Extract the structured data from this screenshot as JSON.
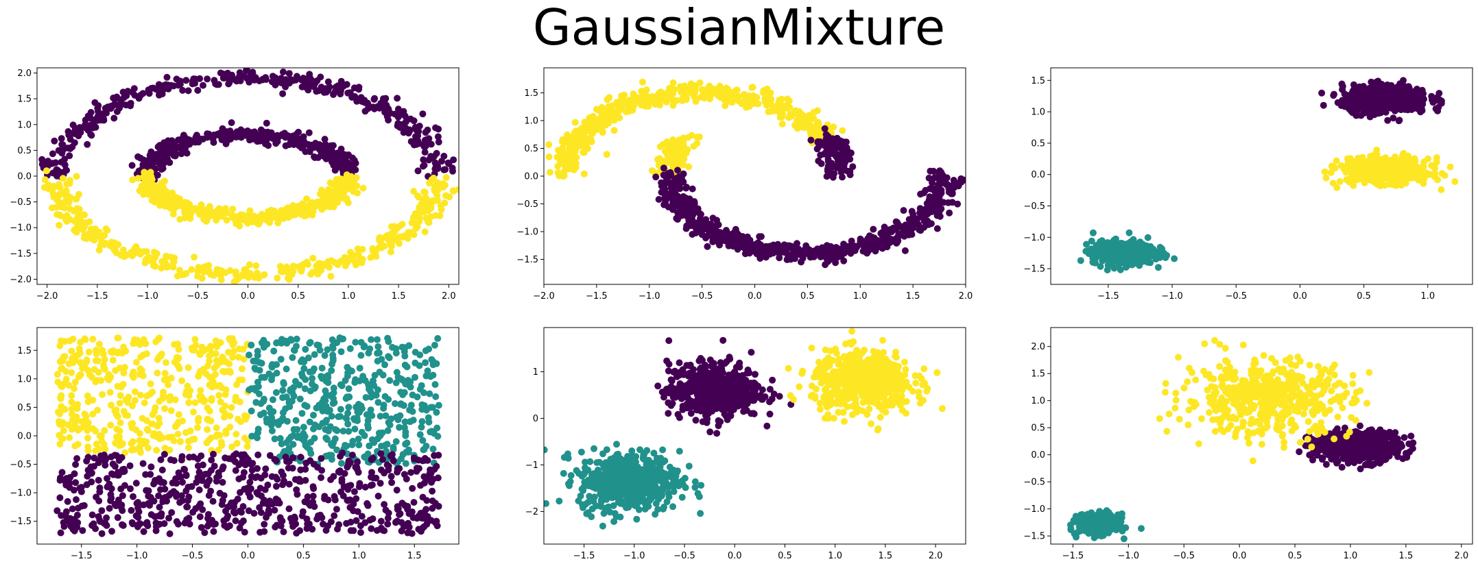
{
  "figure_title": "GaussianMixture",
  "colors": {
    "purple": "#440154",
    "teal": "#21918c",
    "yellow": "#fde725"
  },
  "chart_data": [
    {
      "type": "scatter",
      "title": "",
      "dataset_shape": "concentric circles",
      "xlim": [
        -2.1,
        2.1
      ],
      "ylim": [
        -2.1,
        2.1
      ],
      "xticks": [
        "-2.0",
        "-1.5",
        "-1.0",
        "-0.5",
        "0.0",
        "0.5",
        "1.0",
        "1.5",
        "2.0"
      ],
      "yticks": [
        "-2.0",
        "-1.5",
        "-1.0",
        "-0.5",
        "0.0",
        "0.5",
        "1.0",
        "1.5",
        "2.0"
      ],
      "grid": false,
      "series": [
        {
          "color": "purple",
          "shape": "circle-upper",
          "cx": 0,
          "cy": 0,
          "rx": 1.9,
          "ry": 1.9,
          "from_deg": 0,
          "to_deg": 180,
          "noise": 0.08,
          "count": 380
        },
        {
          "color": "yellow",
          "shape": "circle-lower",
          "cx": 0,
          "cy": 0,
          "rx": 1.9,
          "ry": 1.9,
          "from_deg": 180,
          "to_deg": 360,
          "noise": 0.08,
          "count": 380
        },
        {
          "color": "purple",
          "shape": "ellipse-upper",
          "cx": 0,
          "cy": 0,
          "rx": 1.0,
          "ry": 0.8,
          "from_deg": 0,
          "to_deg": 180,
          "noise": 0.07,
          "count": 380
        },
        {
          "color": "yellow",
          "shape": "ellipse-lower",
          "cx": 0,
          "cy": 0,
          "rx": 1.0,
          "ry": 0.8,
          "from_deg": 180,
          "to_deg": 360,
          "noise": 0.07,
          "count": 380
        }
      ]
    },
    {
      "type": "scatter",
      "title": "",
      "dataset_shape": "two moons",
      "xlim": [
        -2.0,
        2.0
      ],
      "ylim": [
        -1.95,
        1.95
      ],
      "xticks": [
        "-2.0",
        "-1.5",
        "-1.0",
        "-0.5",
        "0.0",
        "0.5",
        "1.0",
        "1.5",
        "2.0"
      ],
      "yticks": [
        "-1.5",
        "-1.0",
        "-0.5",
        "0.0",
        "0.5",
        "1.0",
        "1.5"
      ],
      "grid": false,
      "series": [
        {
          "color": "yellow",
          "shape": "upper-moon",
          "cx": -0.5,
          "cy": 0.05,
          "rx": 1.3,
          "ry": 1.45,
          "from_deg": 25,
          "to_deg": 180,
          "noise": 0.08,
          "count": 520
        },
        {
          "color": "purple",
          "shape": "upper-moon-tip",
          "cx": -0.5,
          "cy": 0.05,
          "rx": 1.3,
          "ry": 1.45,
          "from_deg": 0,
          "to_deg": 25,
          "noise": 0.08,
          "count": 110
        },
        {
          "color": "yellow",
          "shape": "lower-moon-tip",
          "cx": 0.5,
          "cy": 0.05,
          "rx": 1.3,
          "ry": 1.45,
          "from_deg": 155,
          "to_deg": 180,
          "noise": 0.08,
          "count": 90
        },
        {
          "color": "purple",
          "shape": "lower-moon",
          "cx": 0.5,
          "cy": 0.05,
          "rx": 1.3,
          "ry": 1.45,
          "from_deg": 180,
          "to_deg": 360,
          "noise": 0.08,
          "count": 620
        }
      ]
    },
    {
      "type": "scatter",
      "title": "",
      "dataset_shape": "anisotropic blobs",
      "xlim": [
        -1.95,
        1.35
      ],
      "ylim": [
        -1.75,
        1.7
      ],
      "xticks": [
        "-1.5",
        "-1.0",
        "-0.5",
        "0.0",
        "0.5",
        "1.0"
      ],
      "yticks": [
        "-1.5",
        "-1.0",
        "-0.5",
        "0.0",
        "0.5",
        "1.0",
        "1.5"
      ],
      "grid": false,
      "series": [
        {
          "color": "teal",
          "shape": "blob",
          "cx": -1.38,
          "cy": -1.25,
          "sx": 0.12,
          "sy": 0.09,
          "count": 500
        },
        {
          "color": "purple",
          "shape": "blob",
          "cx": 0.67,
          "cy": 1.2,
          "sx": 0.17,
          "sy": 0.11,
          "count": 500
        },
        {
          "color": "yellow",
          "shape": "blob",
          "cx": 0.67,
          "cy": 0.06,
          "sx": 0.17,
          "sy": 0.1,
          "count": 500
        }
      ]
    },
    {
      "type": "scatter",
      "title": "",
      "dataset_shape": "uniform square, three regions",
      "xlim": [
        -1.9,
        1.9
      ],
      "ylim": [
        -1.9,
        1.9
      ],
      "xticks": [
        "-1.5",
        "-1.0",
        "-0.5",
        "0.0",
        "0.5",
        "1.0",
        "1.5"
      ],
      "yticks": [
        "-1.5",
        "-1.0",
        "-0.5",
        "0.0",
        "0.5",
        "1.0",
        "1.5"
      ],
      "grid": false,
      "series": [
        {
          "color": "yellow",
          "shape": "uniform",
          "x_range": [
            -1.72,
            0.0
          ],
          "y_range": [
            -0.3,
            1.72
          ],
          "count": 440
        },
        {
          "color": "teal",
          "shape": "uniform",
          "x_range": [
            0.0,
            1.72
          ],
          "y_range": [
            -0.5,
            1.72
          ],
          "count": 480
        },
        {
          "color": "purple",
          "shape": "uniform",
          "x_range": [
            -1.72,
            1.72
          ],
          "y_range": [
            -1.72,
            -0.3
          ],
          "count": 620
        }
      ]
    },
    {
      "type": "scatter",
      "title": "",
      "dataset_shape": "three isotropic blobs",
      "xlim": [
        -1.9,
        2.3
      ],
      "ylim": [
        -2.7,
        1.95
      ],
      "xticks": [
        "-1.5",
        "-1.0",
        "-0.5",
        "0.0",
        "0.5",
        "1.0",
        "1.5",
        "2.0"
      ],
      "yticks": [
        "-2",
        "-1",
        "0",
        "1"
      ],
      "grid": false,
      "series": [
        {
          "color": "teal",
          "shape": "blob",
          "cx": -1.05,
          "cy": -1.35,
          "sx": 0.25,
          "sy": 0.32,
          "count": 520
        },
        {
          "color": "purple",
          "shape": "blob",
          "cx": -0.2,
          "cy": 0.6,
          "sx": 0.23,
          "sy": 0.3,
          "count": 520
        },
        {
          "color": "yellow",
          "shape": "blob",
          "cx": 1.27,
          "cy": 0.78,
          "sx": 0.25,
          "sy": 0.33,
          "count": 520
        }
      ]
    },
    {
      "type": "scatter",
      "title": "",
      "dataset_shape": "blobs with varied variance",
      "xlim": [
        -1.7,
        2.1
      ],
      "ylim": [
        -1.65,
        2.35
      ],
      "xticks": [
        "-1.5",
        "-1.0",
        "-0.5",
        "0.0",
        "0.5",
        "1.0",
        "1.5",
        "2.0"
      ],
      "yticks": [
        "-1.5",
        "-1.0",
        "-0.5",
        "0.0",
        "0.5",
        "1.0",
        "1.5",
        "2.0"
      ],
      "grid": false,
      "series": [
        {
          "color": "teal",
          "shape": "blob",
          "cx": -1.27,
          "cy": -1.28,
          "sx": 0.09,
          "sy": 0.09,
          "count": 350
        },
        {
          "color": "purple",
          "shape": "blob",
          "cx": 1.05,
          "cy": 0.15,
          "sx": 0.2,
          "sy": 0.14,
          "count": 500
        },
        {
          "color": "yellow",
          "shape": "blob",
          "cx": 0.25,
          "cy": 1.05,
          "sx": 0.38,
          "sy": 0.35,
          "count": 500
        }
      ]
    }
  ]
}
